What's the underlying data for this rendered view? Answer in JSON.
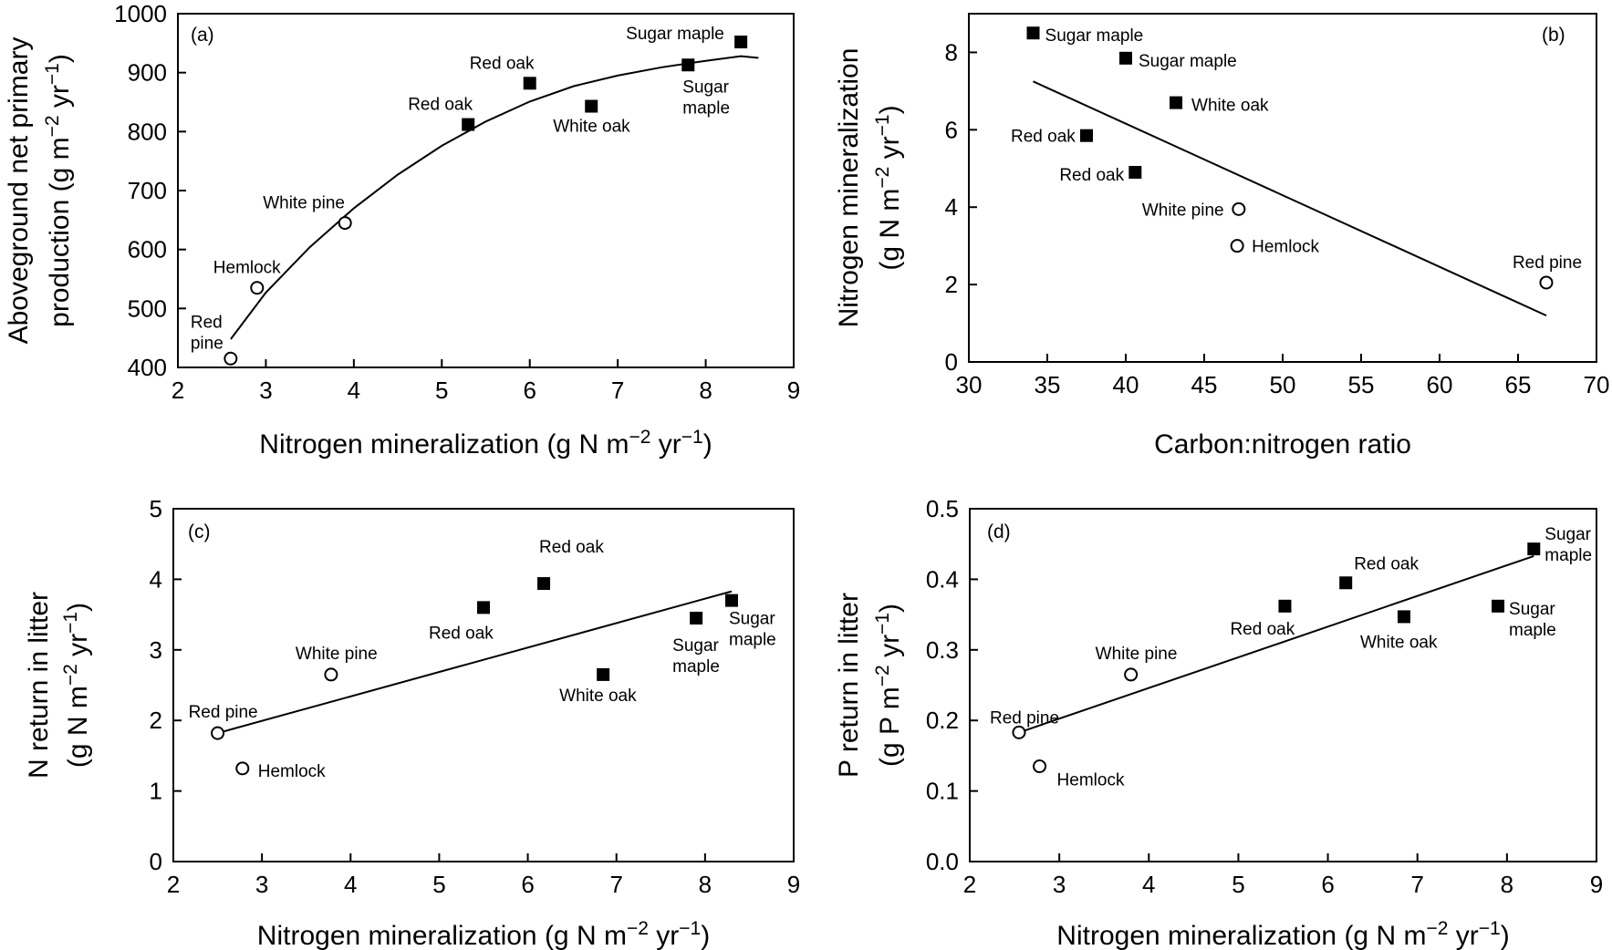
{
  "chart_data": [
    {
      "type": "scatter",
      "panel": "(a)",
      "xlabel": "Nitrogen mineralization (g N m−2 yr−1)",
      "ylabel_lines": [
        "Aboveground net primary",
        "production (g m−2 yr−1)"
      ],
      "xlim": [
        2,
        9
      ],
      "ylim": [
        400,
        1000
      ],
      "xticks": [
        2,
        3,
        4,
        5,
        6,
        7,
        8,
        9
      ],
      "yticks": [
        400,
        500,
        600,
        700,
        800,
        900,
        1000
      ],
      "grid": false,
      "points": [
        {
          "x": 2.6,
          "y": 415,
          "label_lines": [
            "Red",
            "pine"
          ],
          "marker": "open-circle"
        },
        {
          "x": 2.9,
          "y": 535,
          "label_lines": [
            "Hemlock"
          ],
          "marker": "open-circle"
        },
        {
          "x": 3.9,
          "y": 645,
          "label_lines": [
            "White pine"
          ],
          "marker": "open-circle"
        },
        {
          "x": 5.3,
          "y": 812,
          "label_lines": [
            "Red oak"
          ],
          "marker": "filled-square"
        },
        {
          "x": 6.0,
          "y": 882,
          "label_lines": [
            "Red oak"
          ],
          "marker": "filled-square"
        },
        {
          "x": 6.7,
          "y": 843,
          "label_lines": [
            "White oak"
          ],
          "marker": "filled-square"
        },
        {
          "x": 7.8,
          "y": 913,
          "label_lines": [
            "Sugar",
            "maple"
          ],
          "marker": "filled-square"
        },
        {
          "x": 8.4,
          "y": 952,
          "label_lines": [
            "Sugar maple"
          ],
          "marker": "filled-square"
        }
      ],
      "fit": {
        "kind": "curve",
        "points": [
          [
            2.6,
            448
          ],
          [
            3.0,
            527
          ],
          [
            3.5,
            604
          ],
          [
            4.0,
            670
          ],
          [
            4.5,
            727
          ],
          [
            5.0,
            776
          ],
          [
            5.5,
            817
          ],
          [
            6.0,
            851
          ],
          [
            6.5,
            877
          ],
          [
            7.0,
            895
          ],
          [
            7.5,
            909
          ],
          [
            8.0,
            920
          ],
          [
            8.4,
            928
          ],
          [
            8.6,
            925
          ]
        ]
      }
    },
    {
      "type": "scatter",
      "panel": "(b)",
      "xlabel": "Carbon:nitrogen ratio",
      "ylabel_lines": [
        "Nitrogen mineralization",
        "(g N m−2 yr−1)"
      ],
      "xlim": [
        30,
        70
      ],
      "ylim": [
        0,
        9
      ],
      "xticks": [
        30,
        35,
        40,
        45,
        50,
        55,
        60,
        65,
        70
      ],
      "yticks": [
        0,
        2,
        4,
        6,
        8
      ],
      "grid": false,
      "points": [
        {
          "x": 34.1,
          "y": 8.5,
          "label_lines": [
            "Sugar maple"
          ],
          "marker": "filled-square"
        },
        {
          "x": 40.0,
          "y": 7.85,
          "label_lines": [
            "Sugar maple"
          ],
          "marker": "filled-square"
        },
        {
          "x": 43.2,
          "y": 6.7,
          "label_lines": [
            "White oak"
          ],
          "marker": "filled-square"
        },
        {
          "x": 37.5,
          "y": 5.85,
          "label_lines": [
            "Red oak"
          ],
          "marker": "filled-square"
        },
        {
          "x": 40.6,
          "y": 4.9,
          "label_lines": [
            "Red oak"
          ],
          "marker": "filled-square"
        },
        {
          "x": 47.2,
          "y": 3.95,
          "label_lines": [
            "White pine"
          ],
          "marker": "open-circle"
        },
        {
          "x": 47.1,
          "y": 3.0,
          "label_lines": [
            "Hemlock"
          ],
          "marker": "open-circle"
        },
        {
          "x": 66.8,
          "y": 2.05,
          "label_lines": [
            "Red pine"
          ],
          "marker": "open-circle"
        }
      ],
      "fit": {
        "kind": "line",
        "points": [
          [
            34.1,
            7.25
          ],
          [
            66.8,
            1.2
          ]
        ]
      }
    },
    {
      "type": "scatter",
      "panel": "(c)",
      "xlabel": "Nitrogen mineralization (g N m−2 yr−1)",
      "ylabel_lines": [
        "N return in litter",
        "(g N m−2 yr−1)"
      ],
      "xlim": [
        2,
        9
      ],
      "ylim": [
        0,
        5
      ],
      "xticks": [
        2,
        3,
        4,
        5,
        6,
        7,
        8,
        9
      ],
      "yticks": [
        0,
        1,
        2,
        3,
        4,
        5
      ],
      "grid": false,
      "points": [
        {
          "x": 2.5,
          "y": 1.82,
          "label_lines": [
            "Red pine"
          ],
          "marker": "open-circle"
        },
        {
          "x": 2.78,
          "y": 1.32,
          "label_lines": [
            "Hemlock"
          ],
          "marker": "open-circle"
        },
        {
          "x": 3.78,
          "y": 2.65,
          "label_lines": [
            "White pine"
          ],
          "marker": "open-circle"
        },
        {
          "x": 5.5,
          "y": 3.6,
          "label_lines": [
            "Red oak"
          ],
          "marker": "filled-square"
        },
        {
          "x": 6.18,
          "y": 3.94,
          "label_lines": [
            "Red oak"
          ],
          "marker": "filled-square"
        },
        {
          "x": 6.85,
          "y": 2.65,
          "label_lines": [
            "White oak"
          ],
          "marker": "filled-square"
        },
        {
          "x": 7.9,
          "y": 3.45,
          "label_lines": [
            "Sugar",
            "maple"
          ],
          "marker": "filled-square"
        },
        {
          "x": 8.3,
          "y": 3.7,
          "label_lines": [
            "Sugar",
            "maple"
          ],
          "marker": "filled-square"
        }
      ],
      "fit": {
        "kind": "line",
        "points": [
          [
            2.5,
            1.82
          ],
          [
            8.3,
            3.83
          ]
        ]
      }
    },
    {
      "type": "scatter",
      "panel": "(d)",
      "xlabel": "Nitrogen mineralization (g N m−2 yr−1)",
      "ylabel_lines": [
        "P return in litter",
        "(g P m−2 yr−1)"
      ],
      "xlim": [
        2,
        9
      ],
      "ylim": [
        0,
        0.5
      ],
      "xticks": [
        2,
        3,
        4,
        5,
        6,
        7,
        8,
        9
      ],
      "yticks": [
        0,
        0.1,
        0.2,
        0.3,
        0.4,
        0.5
      ],
      "grid": false,
      "points": [
        {
          "x": 2.55,
          "y": 0.183,
          "label_lines": [
            "Red pine"
          ],
          "marker": "open-circle"
        },
        {
          "x": 2.78,
          "y": 0.135,
          "label_lines": [
            "Hemlock"
          ],
          "marker": "open-circle"
        },
        {
          "x": 3.8,
          "y": 0.265,
          "label_lines": [
            "White pine"
          ],
          "marker": "open-circle"
        },
        {
          "x": 5.52,
          "y": 0.362,
          "label_lines": [
            "Red oak"
          ],
          "marker": "filled-square"
        },
        {
          "x": 6.2,
          "y": 0.395,
          "label_lines": [
            "Red oak"
          ],
          "marker": "filled-square"
        },
        {
          "x": 6.85,
          "y": 0.347,
          "label_lines": [
            "White oak"
          ],
          "marker": "filled-square"
        },
        {
          "x": 7.9,
          "y": 0.362,
          "label_lines": [
            "Sugar",
            "maple"
          ],
          "marker": "filled-square"
        },
        {
          "x": 8.3,
          "y": 0.443,
          "label_lines": [
            "Sugar",
            "maple"
          ],
          "marker": "filled-square"
        }
      ],
      "fit": {
        "kind": "line",
        "points": [
          [
            2.55,
            0.183
          ],
          [
            8.3,
            0.433
          ]
        ]
      }
    }
  ]
}
